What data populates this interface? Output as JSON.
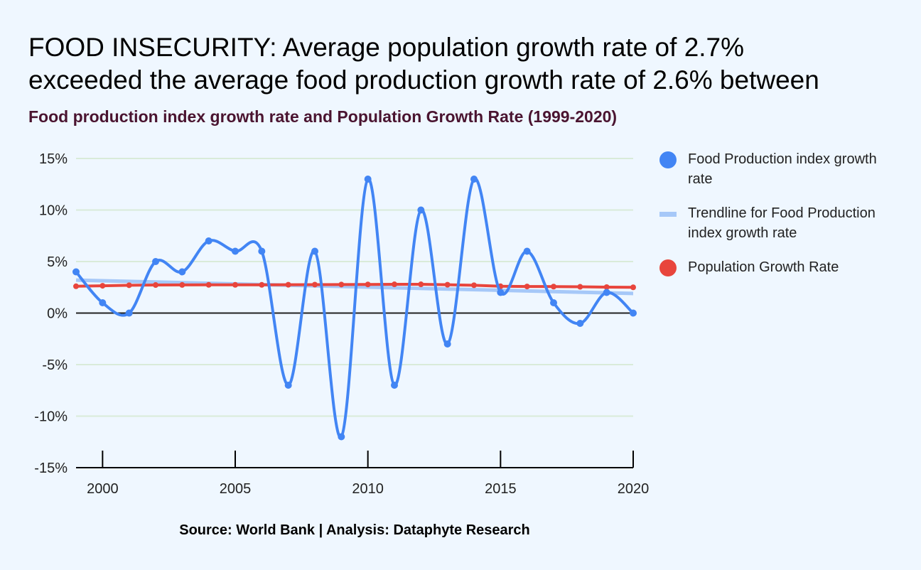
{
  "header": {
    "title_line1": "FOOD INSECURITY: Average population growth rate of 2.7%",
    "title_line2": "exceeded the average food production growth rate of 2.6% between",
    "subtitle": "Food production index growth rate and Population Growth Rate (1999-2020)"
  },
  "footer": {
    "source": "Source: World Bank | Analysis: Dataphyte Research"
  },
  "colors": {
    "food": "#4285f4",
    "trend": "#a6c8f8",
    "population": "#e8453c",
    "grid": "#d9ebd9",
    "zero_line": "#222222",
    "background": "#eff7ff"
  },
  "chart_data": {
    "type": "line",
    "title": "Food production index growth rate and Population Growth Rate (1999-2020)",
    "xlabel": "",
    "ylabel": "",
    "x": [
      1999,
      2000,
      2001,
      2002,
      2003,
      2004,
      2005,
      2006,
      2007,
      2008,
      2009,
      2010,
      2011,
      2012,
      2013,
      2014,
      2015,
      2016,
      2017,
      2018,
      2019,
      2020
    ],
    "xlim": [
      1999,
      2020
    ],
    "ylim": [
      -15,
      15
    ],
    "x_ticks": [
      2000,
      2005,
      2010,
      2015,
      2020
    ],
    "y_ticks": [
      15,
      10,
      5,
      0,
      -5,
      -10,
      -15
    ],
    "y_tick_labels": [
      "15%",
      "10%",
      "5%",
      "0%",
      "-5%",
      "-10%",
      "-15%"
    ],
    "grid": true,
    "legend_position": "right",
    "series": [
      {
        "name": "Food Production index growth rate",
        "style": "smooth-line-markers",
        "values": [
          4,
          1,
          0,
          5,
          4,
          7,
          6,
          6,
          -7,
          6,
          -12,
          13,
          -7,
          10,
          -3,
          13,
          2,
          6,
          1,
          -1,
          2,
          0
        ]
      },
      {
        "name": "Trendline for Food Production index growth rate",
        "style": "trendline",
        "values": [
          3.2,
          1.9
        ],
        "endpoints_x": [
          1999,
          2020
        ]
      },
      {
        "name": "Population Growth Rate",
        "style": "line-markers",
        "values": [
          2.6,
          2.65,
          2.7,
          2.72,
          2.73,
          2.74,
          2.74,
          2.74,
          2.75,
          2.76,
          2.77,
          2.78,
          2.79,
          2.79,
          2.75,
          2.7,
          2.6,
          2.58,
          2.57,
          2.55,
          2.52,
          2.5
        ]
      }
    ]
  },
  "legend": [
    {
      "label": "Food Production index growth rate",
      "swatch": "dot",
      "color": "#4285f4"
    },
    {
      "label": "Trendline for Food Production index growth rate",
      "swatch": "line",
      "color": "#a6c8f8"
    },
    {
      "label": "Population Growth Rate",
      "swatch": "dot",
      "color": "#e8453c"
    }
  ]
}
